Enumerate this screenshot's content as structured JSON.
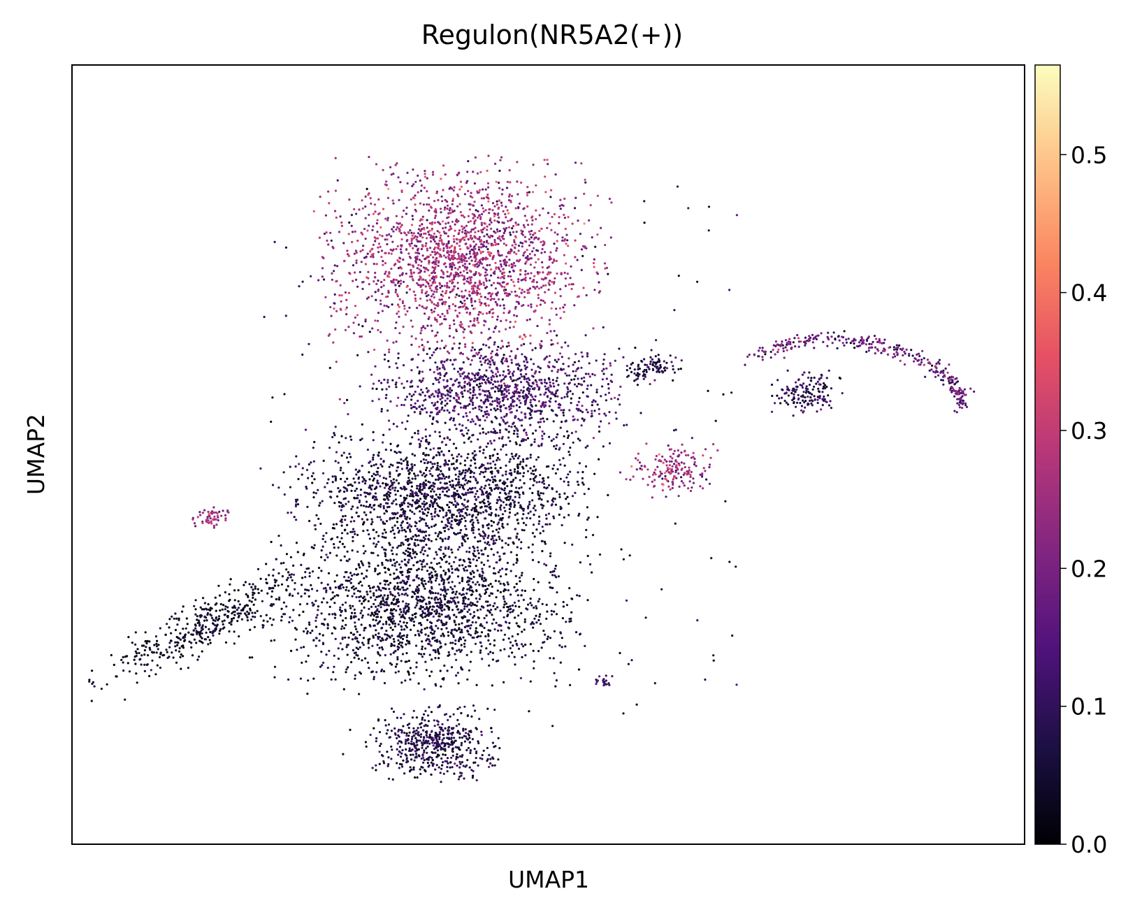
{
  "chart_data": {
    "type": "scatter",
    "title": "Regulon(NR5A2(+))",
    "xlabel": "UMAP1",
    "ylabel": "UMAP2",
    "xlim": [
      0,
      100
    ],
    "ylim": [
      0,
      100
    ],
    "x_ticks_shown": false,
    "y_ticks_shown": false,
    "grid": false,
    "colorbar": {
      "colormap": "magma",
      "range": [
        0.0,
        0.565
      ],
      "ticks": [
        0.0,
        0.1,
        0.2,
        0.3,
        0.4,
        0.5
      ],
      "tick_labels": [
        "0.0",
        "0.1",
        "0.2",
        "0.3",
        "0.4",
        "0.5"
      ],
      "placement": "right",
      "stops": [
        "#000004",
        "#1c1044",
        "#4f127b",
        "#812581",
        "#b5367a",
        "#e55064",
        "#fb8761",
        "#fec287",
        "#fcfdbf"
      ]
    },
    "point_color_note": "cells colored by regulon activity score",
    "clusters": [
      {
        "cx": 41,
        "cy": 75,
        "rx": 13,
        "ry": 11,
        "n": 1900,
        "mean": 0.24,
        "sd": 0.06
      },
      {
        "cx": 45,
        "cy": 58,
        "rx": 12,
        "ry": 6,
        "n": 1100,
        "mean": 0.12,
        "sd": 0.05
      },
      {
        "cx": 39,
        "cy": 45,
        "rx": 14,
        "ry": 7,
        "n": 1500,
        "mean": 0.06,
        "sd": 0.04
      },
      {
        "cx": 37,
        "cy": 31,
        "rx": 14,
        "ry": 9,
        "n": 1700,
        "mean": 0.05,
        "sd": 0.035
      },
      {
        "cx": 38,
        "cy": 13,
        "rx": 6,
        "ry": 4,
        "n": 520,
        "mean": 0.07,
        "sd": 0.04
      },
      {
        "cx": 63,
        "cy": 48,
        "rx": 4,
        "ry": 3,
        "n": 170,
        "mean": 0.24,
        "sd": 0.07
      },
      {
        "cx": 61,
        "cy": 61,
        "rx": 2.5,
        "ry": 1.5,
        "n": 90,
        "mean": 0.07,
        "sd": 0.04
      },
      {
        "cx": 77,
        "cy": 58,
        "rx": 3.5,
        "ry": 2.5,
        "n": 150,
        "mean": 0.08,
        "sd": 0.05
      },
      {
        "cx": 14,
        "cy": 28,
        "rx": 12,
        "ry": 3,
        "angle": 33,
        "n": 420,
        "mean": 0.03,
        "sd": 0.03
      },
      {
        "cx": 14.5,
        "cy": 42,
        "rx": 1.7,
        "ry": 1.2,
        "n": 55,
        "mean": 0.24,
        "sd": 0.05
      },
      {
        "cx": 56,
        "cy": 21,
        "rx": 1,
        "ry": 0.7,
        "n": 20,
        "mean": 0.12,
        "sd": 0.04
      }
    ],
    "arc": {
      "n": 320,
      "mean": 0.16,
      "sd": 0.06
    }
  }
}
